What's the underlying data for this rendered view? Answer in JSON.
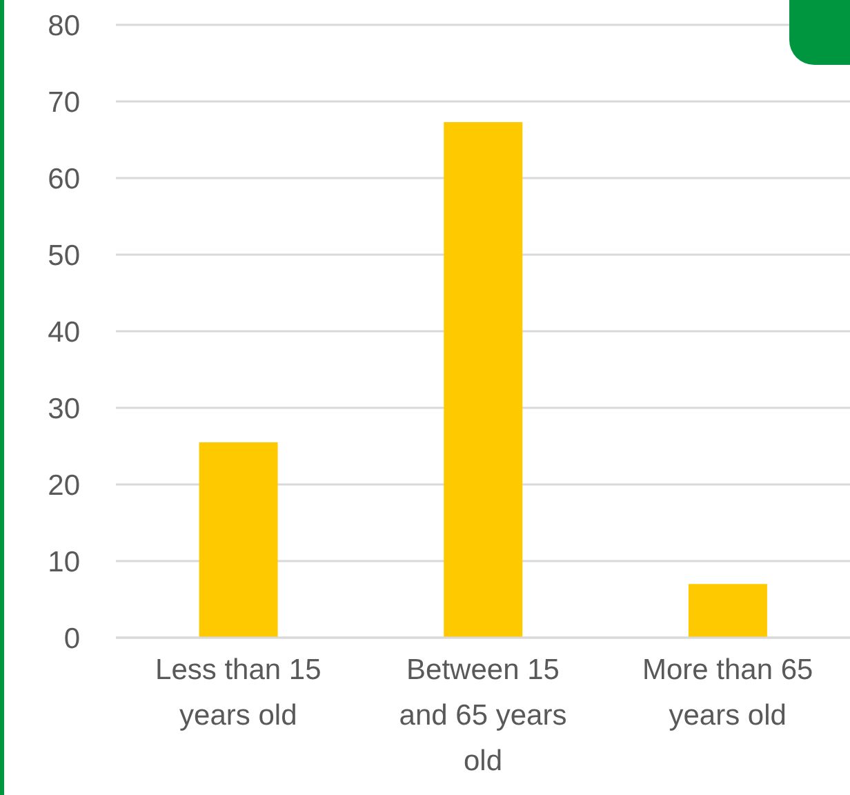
{
  "chart_data": {
    "type": "bar",
    "categories": [
      "Less than 15 years old",
      "Between 15 and 65 years old",
      "More than 65 years old"
    ],
    "values": [
      25.5,
      67.3,
      7
    ],
    "color": "#ffc900",
    "ylim": [
      0,
      80
    ],
    "yticks": [
      0,
      10,
      20,
      30,
      40,
      50,
      60,
      70,
      80
    ],
    "grid": "y"
  }
}
